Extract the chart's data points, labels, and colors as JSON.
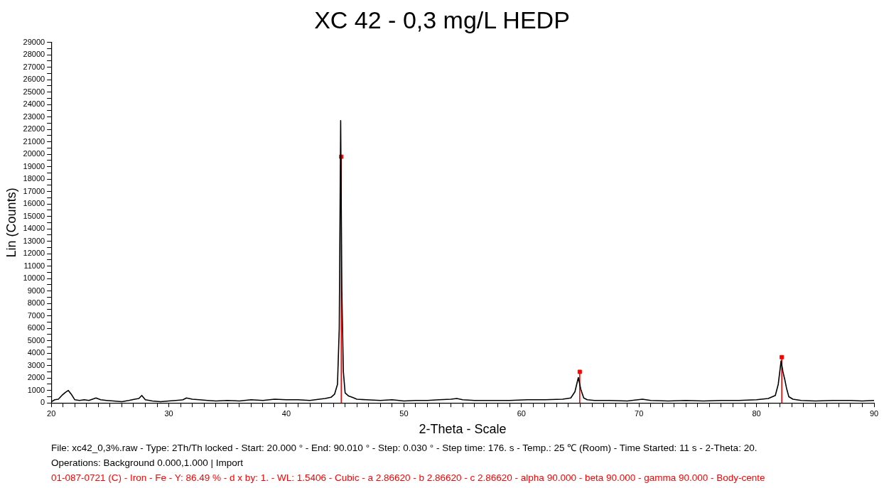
{
  "chart_data": {
    "type": "line",
    "title": "XC 42 - 0,3 mg/L HEDP",
    "xlabel": "2-Theta - Scale",
    "ylabel": "Lin (Counts)",
    "xlim": [
      20,
      90
    ],
    "ylim": [
      0,
      29000
    ],
    "xticks": [
      20,
      {
        "value": 21,
        "label": null
      },
      {
        "value": 22,
        "label": null
      },
      {
        "value": 23,
        "label": null
      },
      {
        "value": 24,
        "label": null
      },
      {
        "value": 25,
        "label": null
      },
      {
        "value": 26,
        "label": null
      },
      {
        "value": 27,
        "label": null
      },
      {
        "value": 28,
        "label": null
      },
      {
        "value": 29,
        "label": null
      },
      30,
      {
        "value": 31,
        "label": null
      },
      {
        "value": 32,
        "label": null
      },
      {
        "value": 33,
        "label": null
      },
      {
        "value": 34,
        "label": null
      },
      {
        "value": 35,
        "label": null
      },
      {
        "value": 36,
        "label": null
      },
      {
        "value": 37,
        "label": null
      },
      {
        "value": 38,
        "label": null
      },
      {
        "value": 39,
        "label": null
      },
      40,
      {
        "value": 41,
        "label": null
      },
      {
        "value": 42,
        "label": null
      },
      {
        "value": 43,
        "label": null
      },
      {
        "value": 44,
        "label": null
      },
      {
        "value": 45,
        "label": null
      },
      {
        "value": 46,
        "label": null
      },
      {
        "value": 47,
        "label": null
      },
      {
        "value": 48,
        "label": null
      },
      {
        "value": 49,
        "label": null
      },
      50,
      {
        "value": 51,
        "label": null
      },
      {
        "value": 52,
        "label": null
      },
      {
        "value": 53,
        "label": null
      },
      {
        "value": 54,
        "label": null
      },
      {
        "value": 55,
        "label": null
      },
      {
        "value": 56,
        "label": null
      },
      {
        "value": 57,
        "label": null
      },
      {
        "value": 58,
        "label": null
      },
      {
        "value": 59,
        "label": null
      },
      60,
      {
        "value": 61,
        "label": null
      },
      {
        "value": 62,
        "label": null
      },
      {
        "value": 63,
        "label": null
      },
      {
        "value": 64,
        "label": null
      },
      {
        "value": 65,
        "label": null
      },
      {
        "value": 66,
        "label": null
      },
      {
        "value": 67,
        "label": null
      },
      {
        "value": 68,
        "label": null
      },
      {
        "value": 69,
        "label": null
      },
      70,
      {
        "value": 71,
        "label": null
      },
      {
        "value": 72,
        "label": null
      },
      {
        "value": 73,
        "label": null
      },
      {
        "value": 74,
        "label": null
      },
      {
        "value": 75,
        "label": null
      },
      {
        "value": 76,
        "label": null
      },
      {
        "value": 77,
        "label": null
      },
      {
        "value": 78,
        "label": null
      },
      {
        "value": 79,
        "label": null
      },
      80,
      {
        "value": 81,
        "label": null
      },
      {
        "value": 82,
        "label": null
      },
      {
        "value": 83,
        "label": null
      },
      {
        "value": 84,
        "label": null
      },
      {
        "value": 85,
        "label": null
      },
      {
        "value": 86,
        "label": null
      },
      {
        "value": 87,
        "label": null
      },
      {
        "value": 88,
        "label": null
      },
      {
        "value": 89,
        "label": null
      },
      90
    ],
    "yticks": [
      0,
      {
        "value": 500,
        "label": null
      },
      1000,
      {
        "value": 1500,
        "label": null
      },
      2000,
      {
        "value": 2500,
        "label": null
      },
      3000,
      {
        "value": 3500,
        "label": null
      },
      4000,
      {
        "value": 4500,
        "label": null
      },
      5000,
      {
        "value": 5500,
        "label": null
      },
      6000,
      {
        "value": 6500,
        "label": null
      },
      7000,
      {
        "value": 7500,
        "label": null
      },
      8000,
      {
        "value": 8500,
        "label": null
      },
      9000,
      {
        "value": 9500,
        "label": null
      },
      10000,
      {
        "value": 10500,
        "label": null
      },
      11000,
      {
        "value": 11500,
        "label": null
      },
      12000,
      {
        "value": 12500,
        "label": null
      },
      13000,
      {
        "value": 13500,
        "label": null
      },
      14000,
      {
        "value": 14500,
        "label": null
      },
      15000,
      {
        "value": 15500,
        "label": null
      },
      16000,
      {
        "value": 16500,
        "label": null
      },
      17000,
      {
        "value": 17500,
        "label": null
      },
      18000,
      {
        "value": 18500,
        "label": null
      },
      19000,
      {
        "value": 19500,
        "label": null
      },
      20000,
      {
        "value": 20500,
        "label": null
      },
      21000,
      {
        "value": 21500,
        "label": null
      },
      22000,
      {
        "value": 22500,
        "label": null
      },
      23000,
      {
        "value": 23500,
        "label": null
      },
      24000,
      {
        "value": 24500,
        "label": null
      },
      25000,
      {
        "value": 25500,
        "label": null
      },
      26000,
      {
        "value": 26500,
        "label": null
      },
      27000,
      {
        "value": 27500,
        "label": null
      },
      28000,
      {
        "value": 28500,
        "label": null
      },
      29000
    ],
    "grid": false,
    "legend": false,
    "series": [
      {
        "type": "line",
        "color": "#000000",
        "marker": "none",
        "line_style": "solid",
        "x": [
          20.0,
          20.3,
          20.6,
          20.9,
          21.2,
          21.45,
          21.7,
          22.0,
          22.4,
          22.8,
          23.2,
          23.5,
          23.8,
          24.2,
          24.7,
          25.3,
          26.0,
          26.6,
          27.1,
          27.45,
          27.7,
          28.0,
          28.6,
          29.3,
          30.0,
          30.6,
          31.2,
          31.5,
          32.0,
          32.6,
          33.3,
          34.0,
          35.0,
          36.0,
          37.0,
          38.0,
          39.0,
          40.0,
          41.0,
          42.0,
          42.8,
          43.3,
          43.8,
          44.1,
          44.35,
          44.5,
          44.62,
          44.72,
          44.85,
          45.0,
          45.3,
          45.6,
          46.0,
          46.8,
          48.0,
          49.0,
          50.0,
          51.0,
          52.0,
          53.0,
          54.0,
          54.5,
          55.0,
          56.0,
          57.5,
          59.0,
          60.5,
          62.0,
          63.5,
          64.2,
          64.55,
          64.84,
          65.05,
          65.3,
          65.6,
          66.2,
          67.5,
          69.0,
          70.3,
          71.0,
          72.5,
          74.0,
          75.5,
          77.0,
          78.5,
          80.0,
          81.0,
          81.6,
          81.85,
          82.09,
          82.25,
          82.4,
          82.55,
          82.75,
          83.1,
          83.8,
          85.0,
          86.5,
          88.0,
          89.0,
          90.0
        ],
        "values": [
          100,
          250,
          300,
          600,
          850,
          1000,
          700,
          250,
          200,
          250,
          200,
          300,
          400,
          250,
          200,
          150,
          100,
          200,
          300,
          350,
          600,
          250,
          150,
          100,
          150,
          200,
          250,
          400,
          300,
          250,
          200,
          150,
          200,
          150,
          250,
          200,
          300,
          250,
          250,
          200,
          300,
          350,
          450,
          700,
          1500,
          6000,
          22700,
          9000,
          2500,
          800,
          550,
          450,
          300,
          250,
          200,
          250,
          150,
          200,
          200,
          250,
          300,
          350,
          250,
          200,
          200,
          200,
          250,
          250,
          300,
          400,
          900,
          2040,
          1100,
          400,
          250,
          200,
          200,
          150,
          300,
          200,
          150,
          200,
          150,
          200,
          200,
          250,
          350,
          600,
          1500,
          3380,
          2500,
          1900,
          1200,
          500,
          300,
          200,
          150,
          200,
          200,
          150,
          200
        ]
      },
      {
        "type": "lollipop",
        "color": "#ff0000",
        "marker": "square",
        "x": [
          44.67,
          64.96,
          82.15
        ],
        "values": [
          19800,
          2500,
          3680
        ]
      }
    ],
    "annotations": [
      "File: xc42_0,3%.raw - Type: 2Th/Th locked - Start: 20.000 ° - End: 90.010 ° - Step: 0.030 ° - Step time: 176. s - Temp.: 25 ℃ (Room) - Time Started: 11 s - 2-Theta: 20.",
      "Operations: Background 0.000,1.000 | Import",
      "01-087-0721 (C) - Iron - Fe - Y: 86.49 % - d x by: 1. - WL: 1.5406 - Cubic - a 2.86620 - b 2.86620 - c 2.86620 - alpha 90.000 - beta 90.000 - gamma 90.000 - Body-cente"
    ]
  }
}
